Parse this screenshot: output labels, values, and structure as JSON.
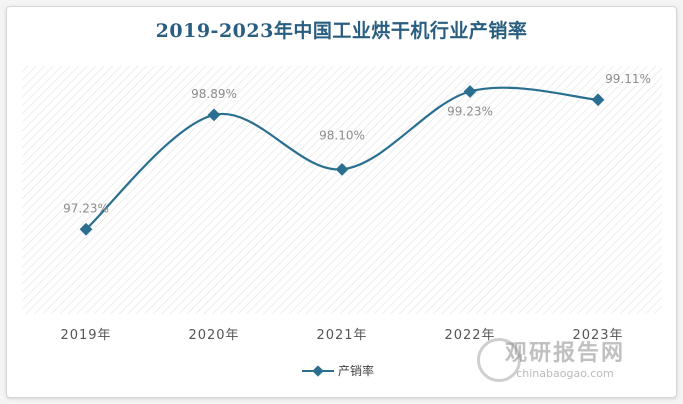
{
  "colors": {
    "line": "#2a6f8f",
    "title": "#2a5e80",
    "plot_bg_hatch": "#e2e2e2"
  },
  "watermark": {
    "main": "观研报告网",
    "sub": "chinabaogao.com"
  },
  "chart_data": {
    "type": "line",
    "title": "2019-2023年中国工业烘干机行业产销率",
    "categories": [
      "2019年",
      "2020年",
      "2021年",
      "2022年",
      "2023年"
    ],
    "series": [
      {
        "name": "产销率",
        "values": [
          97.23,
          98.89,
          98.1,
          99.23,
          99.11
        ],
        "labels": [
          "97.23%",
          "98.89%",
          "98.10%",
          "99.23%",
          "99.11%"
        ]
      }
    ],
    "ylim": [
      96.0,
      99.6
    ],
    "xlabel": "",
    "ylabel": "",
    "grid": false,
    "legend": "bottom-center"
  }
}
